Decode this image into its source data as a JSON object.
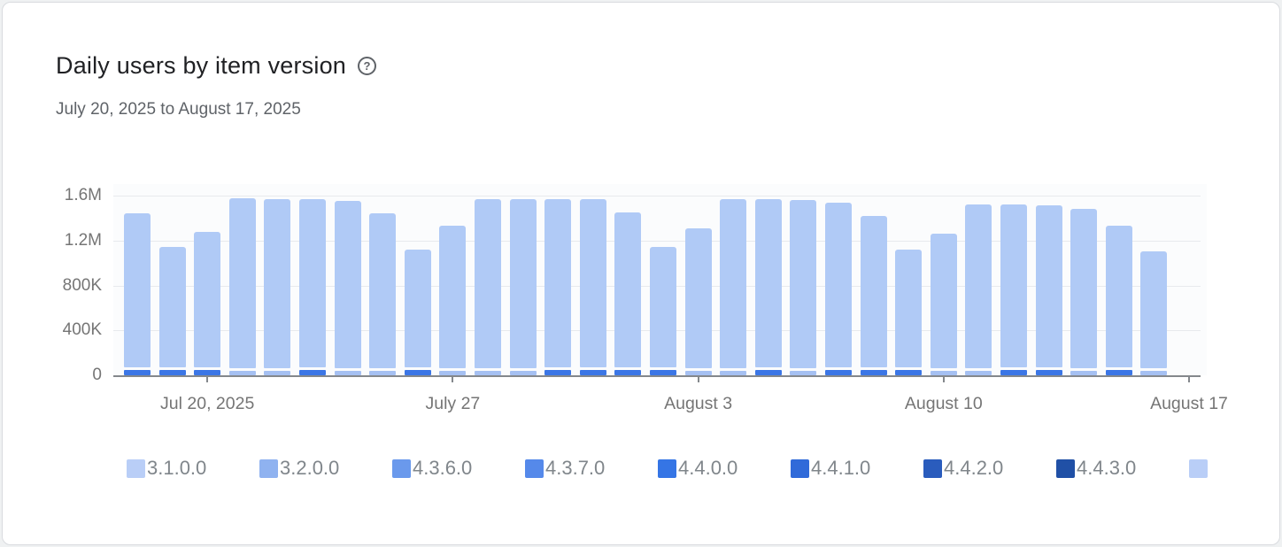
{
  "card": {
    "title": "Daily users by item version",
    "date_range": "July 20, 2025 to August 17, 2025",
    "help_icon_glyph": "?"
  },
  "chart_data": {
    "type": "bar",
    "stacked": true,
    "title": "Daily users by item version",
    "date_range": "July 20, 2025 to August 17, 2025",
    "ylim": [
      0,
      1600000
    ],
    "grid": true,
    "legend_position": "bottom",
    "bar_color": "#b0caf6",
    "accent_colors": {
      "dark": "#3b76e6",
      "light": "#a5c0f2"
    },
    "y_ticks": [
      {
        "label": "1.6M",
        "value": 1600000
      },
      {
        "label": "1.2M",
        "value": 1200000
      },
      {
        "label": "800K",
        "value": 800000
      },
      {
        "label": "400K",
        "value": 400000
      },
      {
        "label": "0",
        "value": 0
      }
    ],
    "x_ticks": [
      {
        "label": "Jul 20, 2025",
        "slot": 2
      },
      {
        "label": "July 27",
        "slot": 9
      },
      {
        "label": "August 3",
        "slot": 16
      },
      {
        "label": "August 10",
        "slot": 23
      },
      {
        "label": "August 17",
        "slot": 30
      }
    ],
    "bars": [
      {
        "total": 1440000,
        "accent": "dark"
      },
      {
        "total": 1140000,
        "accent": "dark"
      },
      {
        "total": 1280000,
        "accent": "dark"
      },
      {
        "total": 1580000,
        "accent": "light"
      },
      {
        "total": 1570000,
        "accent": "light"
      },
      {
        "total": 1570000,
        "accent": "dark"
      },
      {
        "total": 1550000,
        "accent": "light"
      },
      {
        "total": 1440000,
        "accent": "light"
      },
      {
        "total": 1120000,
        "accent": "dark"
      },
      {
        "total": 1330000,
        "accent": "light"
      },
      {
        "total": 1570000,
        "accent": "light"
      },
      {
        "total": 1570000,
        "accent": "light"
      },
      {
        "total": 1570000,
        "accent": "dark"
      },
      {
        "total": 1570000,
        "accent": "dark"
      },
      {
        "total": 1450000,
        "accent": "dark"
      },
      {
        "total": 1140000,
        "accent": "dark"
      },
      {
        "total": 1310000,
        "accent": "light"
      },
      {
        "total": 1570000,
        "accent": "light"
      },
      {
        "total": 1570000,
        "accent": "dark"
      },
      {
        "total": 1560000,
        "accent": "light"
      },
      {
        "total": 1540000,
        "accent": "dark"
      },
      {
        "total": 1420000,
        "accent": "dark"
      },
      {
        "total": 1120000,
        "accent": "dark"
      },
      {
        "total": 1260000,
        "accent": "light"
      },
      {
        "total": 1520000,
        "accent": "light"
      },
      {
        "total": 1520000,
        "accent": "dark"
      },
      {
        "total": 1510000,
        "accent": "dark"
      },
      {
        "total": 1480000,
        "accent": "light"
      },
      {
        "total": 1330000,
        "accent": "dark"
      },
      {
        "total": 1100000,
        "accent": "light"
      }
    ],
    "legend": [
      {
        "label": "3.1.0.0",
        "color": "#b9cef7"
      },
      {
        "label": "3.2.0.0",
        "color": "#8fb2f0"
      },
      {
        "label": "4.3.6.0",
        "color": "#6a99ec"
      },
      {
        "label": "4.3.7.0",
        "color": "#5589ea"
      },
      {
        "label": "4.4.0.0",
        "color": "#3575e5"
      },
      {
        "label": "4.4.1.0",
        "color": "#306ad9"
      },
      {
        "label": "4.4.2.0",
        "color": "#2a5cbd"
      },
      {
        "label": "4.4.3.0",
        "color": "#2050a6"
      },
      {
        "label": "",
        "color": "#b9cef7"
      }
    ]
  }
}
